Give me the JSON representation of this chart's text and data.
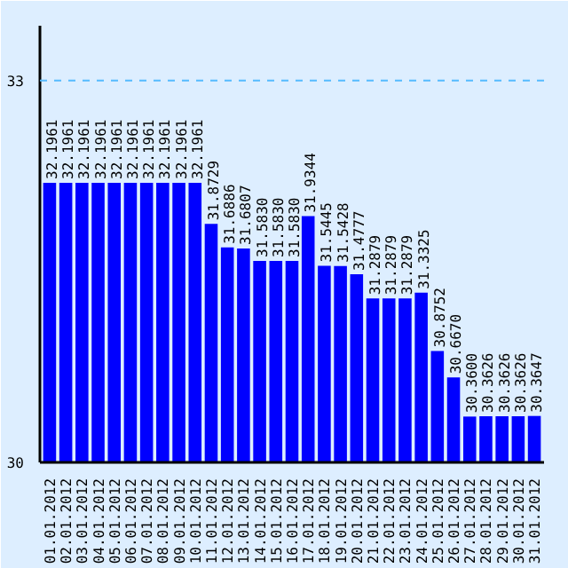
{
  "chart_data": {
    "type": "bar",
    "categories": [
      "01.01.2012",
      "02.01.2012",
      "03.01.2012",
      "04.01.2012",
      "05.01.2012",
      "06.01.2012",
      "07.01.2012",
      "08.01.2012",
      "09.01.2012",
      "10.01.2012",
      "11.01.2012",
      "12.01.2012",
      "13.01.2012",
      "14.01.2012",
      "15.01.2012",
      "16.01.2012",
      "17.01.2012",
      "18.01.2012",
      "19.01.2012",
      "20.01.2012",
      "21.01.2012",
      "22.01.2012",
      "23.01.2012",
      "24.01.2012",
      "25.01.2012",
      "26.01.2012",
      "27.01.2012",
      "28.01.2012",
      "29.01.2012",
      "30.01.2012",
      "31.01.2012"
    ],
    "values": [
      32.1961,
      32.1961,
      32.1961,
      32.1961,
      32.1961,
      32.1961,
      32.1961,
      32.1961,
      32.1961,
      32.1961,
      31.8729,
      31.6886,
      31.6807,
      31.583,
      31.583,
      31.583,
      31.9344,
      31.5445,
      31.5428,
      31.4777,
      31.2879,
      31.2879,
      31.2879,
      31.3325,
      30.8752,
      30.667,
      30.36,
      30.3626,
      30.3626,
      30.3626,
      30.3647
    ],
    "value_labels": [
      "32.1961",
      "32.1961",
      "32.1961",
      "32.1961",
      "32.1961",
      "32.1961",
      "32.1961",
      "32.1961",
      "32.1961",
      "32.1961",
      "31.8729",
      "31.6886",
      "31.6807",
      "31.5830",
      "31.5830",
      "31.5830",
      "31.9344",
      "31.5445",
      "31.5428",
      "31.4777",
      "31.2879",
      "31.2879",
      "31.2879",
      "31.3325",
      "30.8752",
      "30.6670",
      "30.3600",
      "30.3626",
      "30.3626",
      "30.3626",
      "30.3647"
    ],
    "color": "#0000ff",
    "ylim": [
      30,
      33.43
    ],
    "yticks": [
      30,
      33
    ],
    "ref_lines": [
      {
        "axis": "y",
        "value": 33,
        "color": "#55bbff",
        "line_style": "dashed"
      }
    ]
  }
}
